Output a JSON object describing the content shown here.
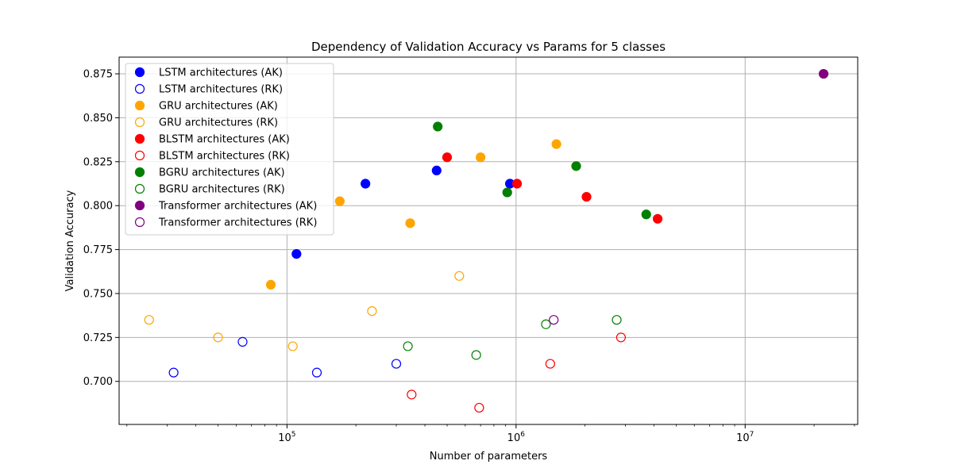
{
  "chart_data": {
    "type": "scatter",
    "title": "Dependency of Validation Accuracy vs Params for 5 classes",
    "xlabel": "Number of parameters",
    "ylabel": "Validation Accuracy",
    "xscale": "log",
    "xlim": [
      18500,
      31000000
    ],
    "ylim": [
      0.6755,
      0.8845
    ],
    "x_major_ticks": [
      {
        "value": 100000,
        "base": "10",
        "exp": "5"
      },
      {
        "value": 1000000,
        "base": "10",
        "exp": "6"
      },
      {
        "value": 10000000,
        "base": "10",
        "exp": "7"
      }
    ],
    "y_ticks": [
      {
        "value": 0.7,
        "label": "0.700"
      },
      {
        "value": 0.725,
        "label": "0.725"
      },
      {
        "value": 0.75,
        "label": "0.750"
      },
      {
        "value": 0.775,
        "label": "0.775"
      },
      {
        "value": 0.8,
        "label": "0.800"
      },
      {
        "value": 0.825,
        "label": "0.825"
      },
      {
        "value": 0.85,
        "label": "0.850"
      },
      {
        "value": 0.875,
        "label": "0.875"
      }
    ],
    "grid": true,
    "legend_position": "top-left",
    "series": [
      {
        "name": "LSTM architectures (AK)",
        "color": "#0000ff",
        "filled": true,
        "points": [
          [
            110000,
            0.7725
          ],
          [
            220000,
            0.8125
          ],
          [
            450000,
            0.82
          ],
          [
            940000,
            0.8125
          ]
        ]
      },
      {
        "name": "LSTM architectures (RK)",
        "color": "#0000ff",
        "filled": false,
        "points": [
          [
            32000,
            0.705
          ],
          [
            64000,
            0.7225
          ],
          [
            135000,
            0.705
          ],
          [
            300000,
            0.71
          ]
        ]
      },
      {
        "name": "GRU architectures (AK)",
        "color": "#ffa500",
        "filled": true,
        "points": [
          [
            85000,
            0.755
          ],
          [
            170000,
            0.8025
          ],
          [
            345000,
            0.79
          ],
          [
            700000,
            0.8275
          ],
          [
            1500000,
            0.835
          ]
        ]
      },
      {
        "name": "GRU architectures (RK)",
        "color": "#ffa500",
        "filled": false,
        "points": [
          [
            25000,
            0.735
          ],
          [
            50000,
            0.725
          ],
          [
            106000,
            0.72
          ],
          [
            235000,
            0.74
          ],
          [
            565000,
            0.76
          ]
        ]
      },
      {
        "name": "BLSTM architectures (AK)",
        "color": "#ff0000",
        "filled": true,
        "points": [
          [
            500000,
            0.8275
          ],
          [
            1010000,
            0.8125
          ],
          [
            2030000,
            0.805
          ],
          [
            4150000,
            0.7925
          ]
        ]
      },
      {
        "name": "BLSTM architectures (RK)",
        "color": "#ff0000",
        "filled": false,
        "points": [
          [
            350000,
            0.6925
          ],
          [
            690000,
            0.685
          ],
          [
            1410000,
            0.71
          ],
          [
            2870000,
            0.725
          ]
        ]
      },
      {
        "name": "BGRU architectures (AK)",
        "color": "#008000",
        "filled": true,
        "points": [
          [
            455000,
            0.845
          ],
          [
            915000,
            0.8075
          ],
          [
            1830000,
            0.8225
          ],
          [
            3700000,
            0.795
          ]
        ]
      },
      {
        "name": "BGRU architectures (RK)",
        "color": "#008000",
        "filled": false,
        "points": [
          [
            337000,
            0.72
          ],
          [
            670000,
            0.715
          ],
          [
            1350000,
            0.7325
          ],
          [
            2750000,
            0.735
          ]
        ]
      },
      {
        "name": "Transformer architectures (AK)",
        "color": "#800080",
        "filled": true,
        "points": [
          [
            22000000,
            0.875
          ]
        ]
      },
      {
        "name": "Transformer architectures (RK)",
        "color": "#800080",
        "filled": false,
        "points": [
          [
            1460000,
            0.735
          ]
        ]
      }
    ]
  }
}
